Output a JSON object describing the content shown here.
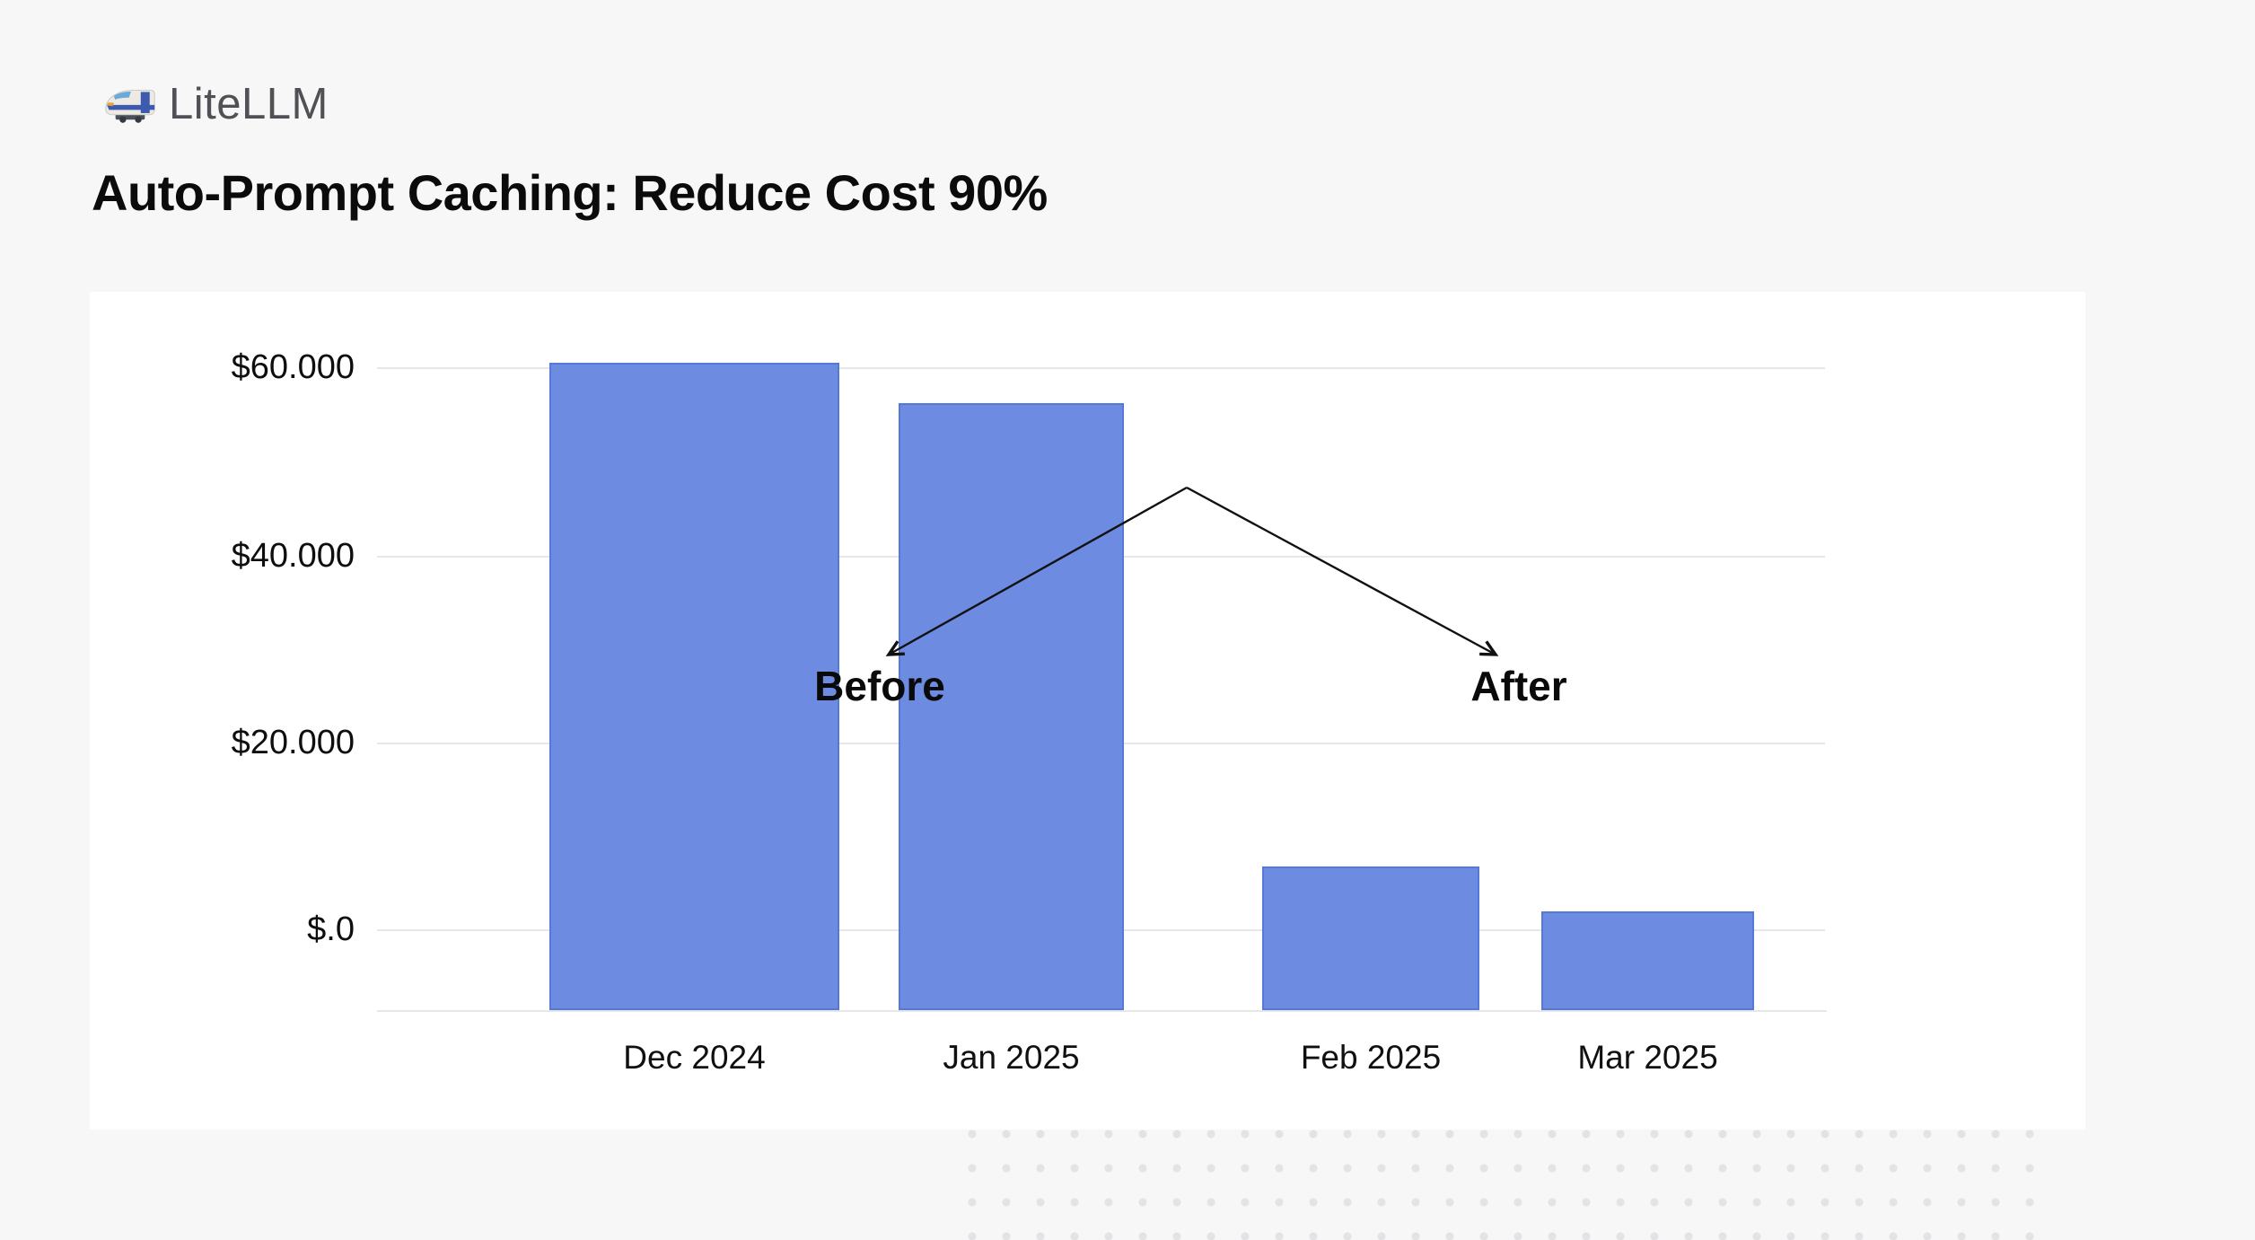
{
  "header": {
    "brand": "LiteLLM",
    "logo_icon": "bullet-train",
    "title": "Auto-Prompt Caching: Reduce Cost 90%"
  },
  "chart_data": {
    "type": "bar",
    "title": "Auto-Prompt Caching: Reduce Cost 90%",
    "categories": [
      "Dec 2024",
      "Jan 2025",
      "Feb 2025",
      "Mar 2025"
    ],
    "values": [
      60300,
      56000,
      6700,
      1900
    ],
    "y_tick_labels": [
      "$60.000",
      "$40.000",
      "$20.000",
      "$.0"
    ],
    "y_tick_values": [
      60000,
      40000,
      20000,
      0
    ],
    "xlabel": "",
    "ylabel": "",
    "ylim": [
      0,
      62000
    ],
    "grid": true,
    "legend": false,
    "bar_color": "#6d8ce1",
    "annotations": [
      {
        "label": "Before",
        "points_to": "Dec 2024 / Jan 2025 bars"
      },
      {
        "label": "After",
        "points_to": "Feb 2025 / Mar 2025 bars"
      }
    ]
  },
  "colors": {
    "page_bg": "#f7f7f8",
    "card_bg": "#ffffff",
    "bar_fill": "#6d8ce1",
    "bar_border": "#5479d6",
    "gridline": "#e7e7e7",
    "brand_text": "#505055",
    "title_text": "#0b0b0b",
    "annotation_arrow": "#111111",
    "dot_pattern": "#e3e3e6"
  }
}
